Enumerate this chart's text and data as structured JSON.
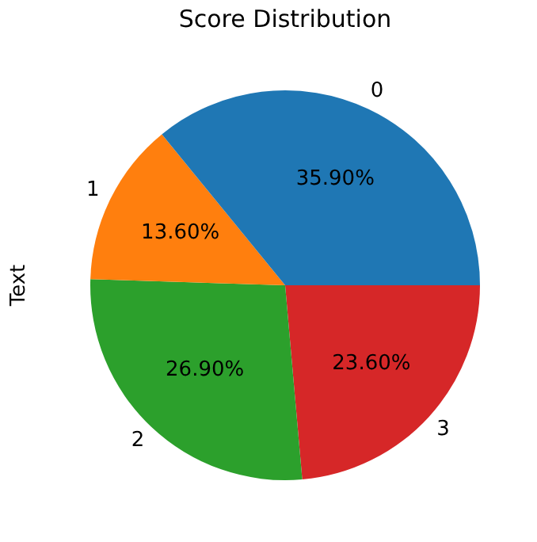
{
  "chart_data": {
    "type": "pie",
    "title": "Score Distribution",
    "ylabel": "Text",
    "categories": [
      "0",
      "1",
      "2",
      "3"
    ],
    "values": [
      35.9,
      13.6,
      26.9,
      23.6
    ],
    "value_labels": [
      "35.90%",
      "13.60%",
      "26.90%",
      "23.60%"
    ],
    "colors": [
      "#1f77b4",
      "#ff7f0e",
      "#2ca02c",
      "#d62728"
    ],
    "legend": false
  }
}
